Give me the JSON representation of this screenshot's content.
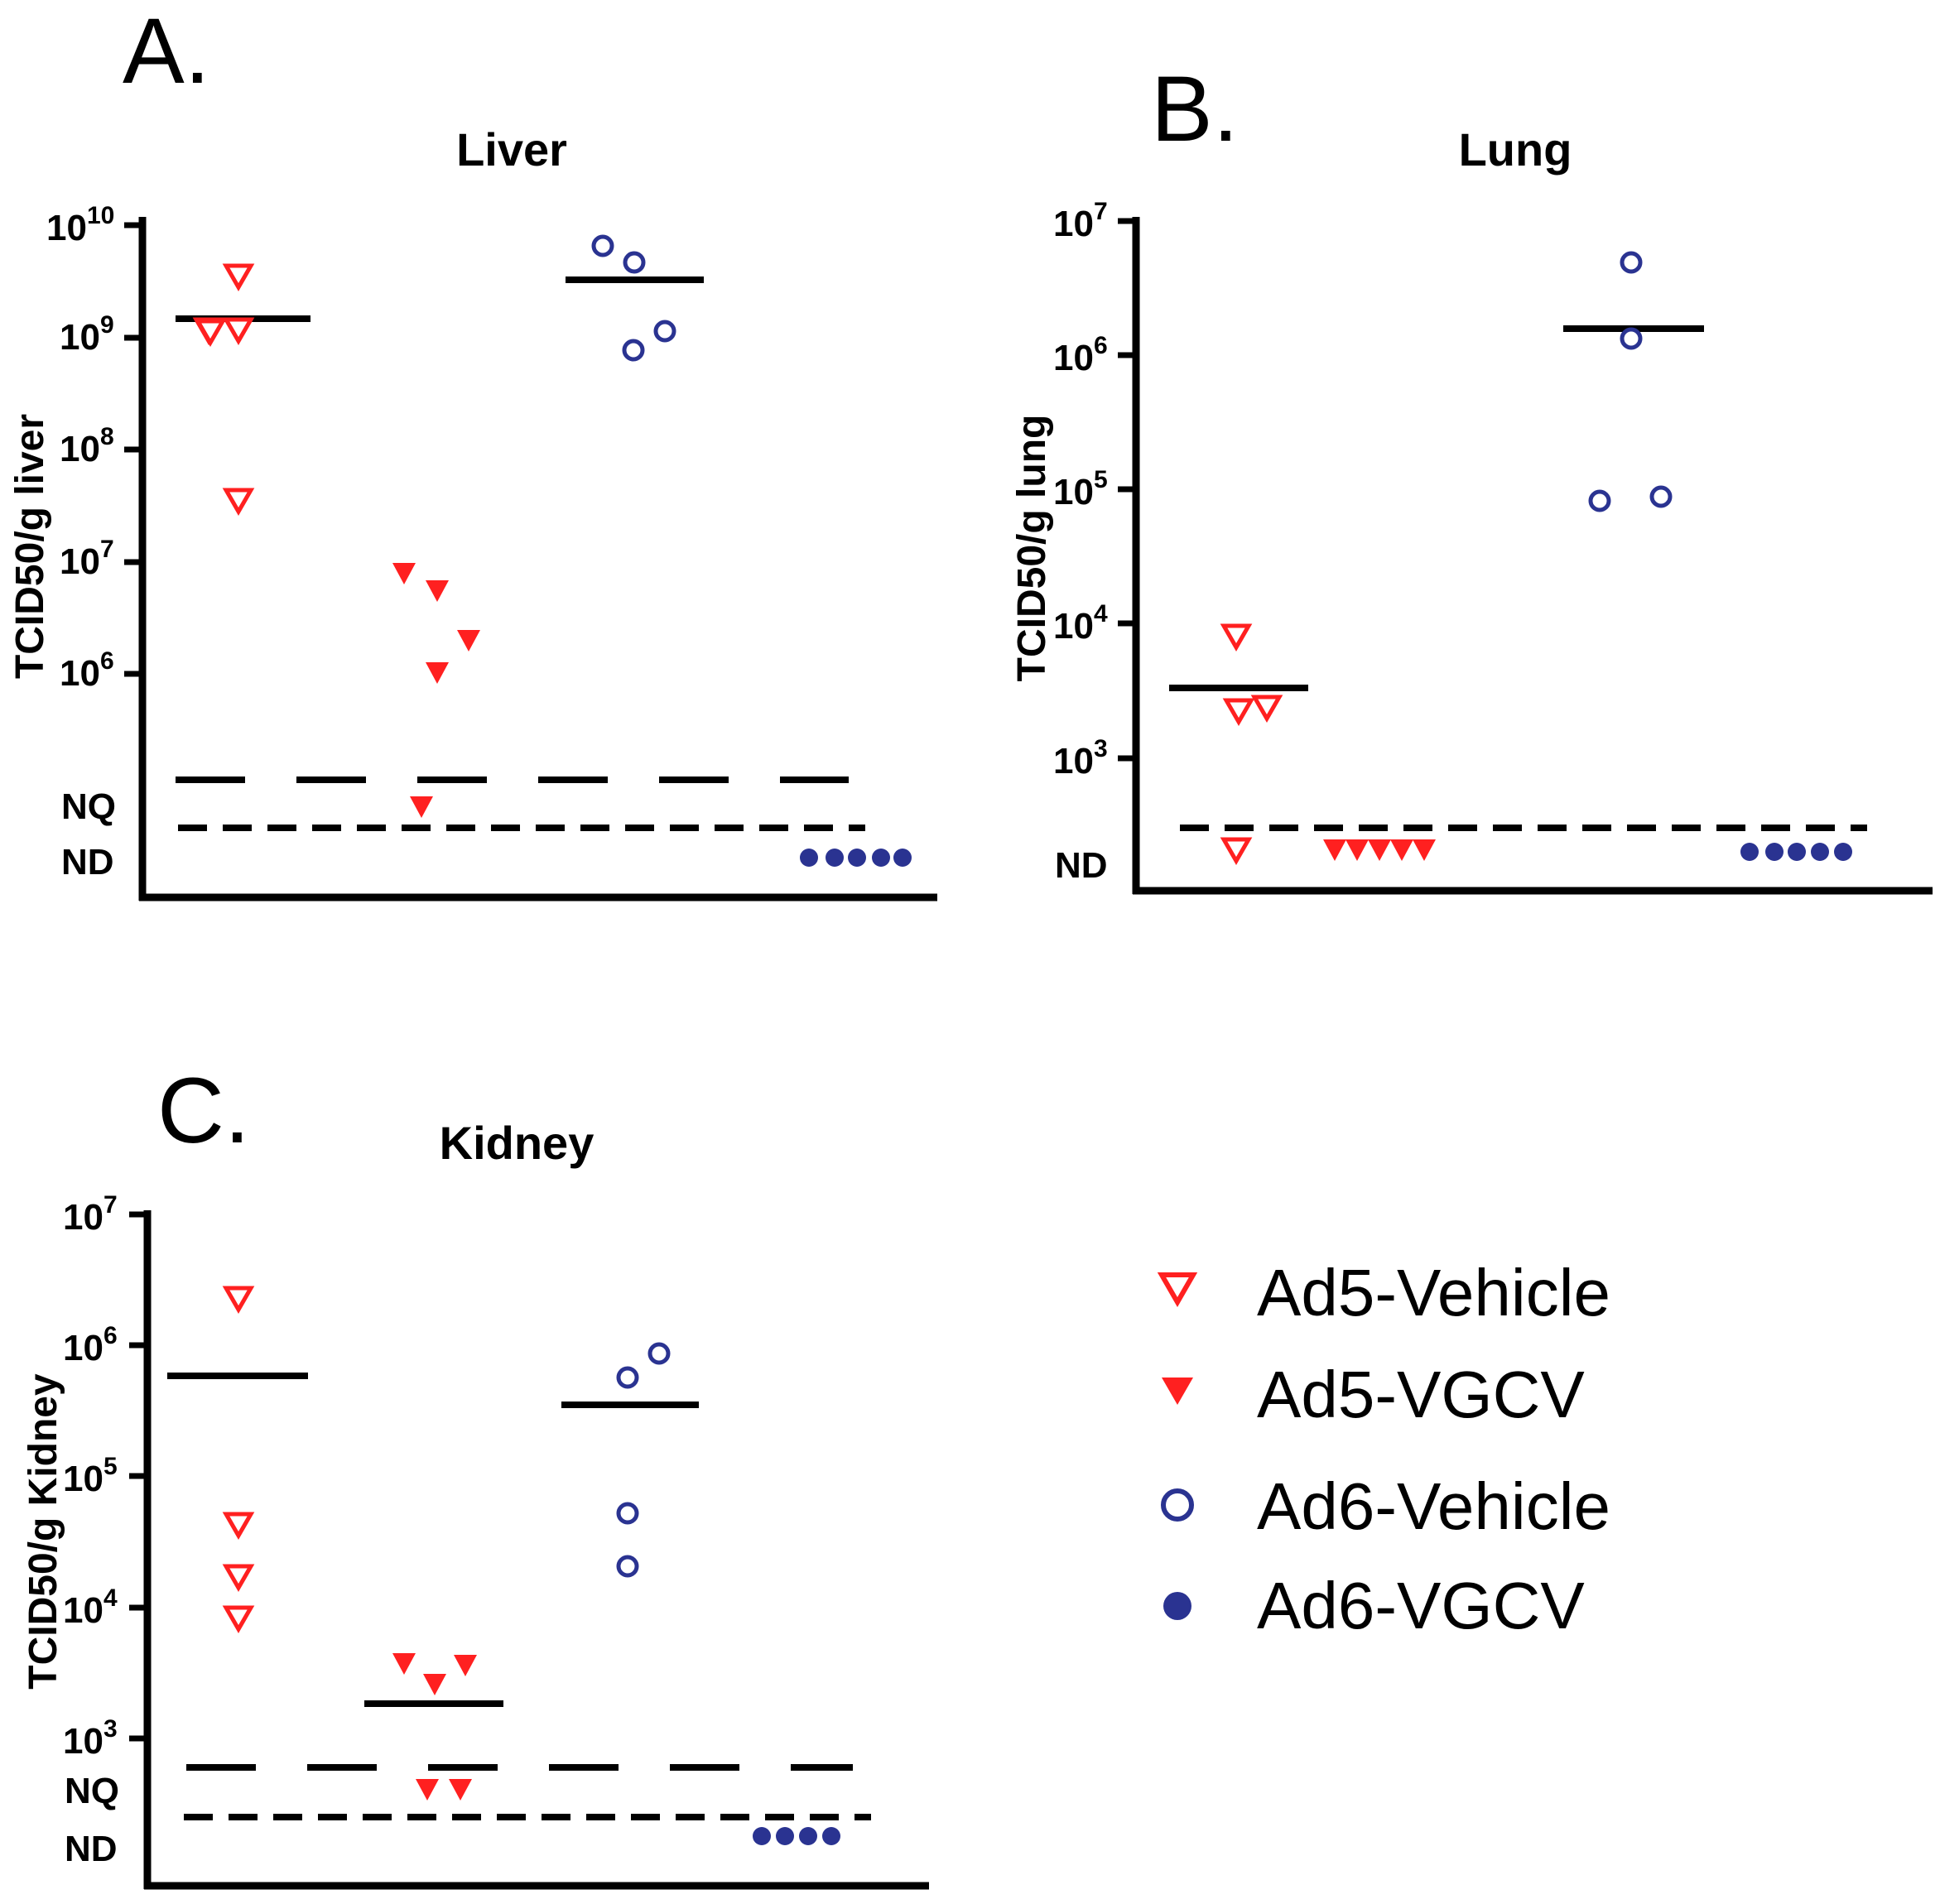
{
  "colors": {
    "ad5": "#ff2020",
    "ad6": "#2a3391",
    "line": "#000000"
  },
  "legend": {
    "items": [
      {
        "label": "Ad5-Vehicle",
        "marker": "triangle-open",
        "group": "ad5"
      },
      {
        "label": "Ad5-VGCV",
        "marker": "triangle-filled",
        "group": "ad5"
      },
      {
        "label": "Ad6-Vehicle",
        "marker": "circle-open",
        "group": "ad6"
      },
      {
        "label": "Ad6-VGCV",
        "marker": "circle-filled",
        "group": "ad6"
      }
    ]
  },
  "chart_data": [
    {
      "panel": "A.",
      "title": "Liver",
      "type": "scatter",
      "ylabel": "TCID50/g liver",
      "yscale": "log",
      "ylim_exp": [
        6,
        10
      ],
      "yticks": [
        {
          "base": "10",
          "exp": "10"
        },
        {
          "base": "10",
          "exp": "9"
        },
        {
          "base": "10",
          "exp": "8"
        },
        {
          "base": "10",
          "exp": "7"
        },
        {
          "base": "10",
          "exp": "6"
        }
      ],
      "nq_label": "NQ",
      "nd_label": "ND",
      "series": [
        {
          "name": "Ad5-Vehicle",
          "values": [
            3500000000.0,
            1100000000.0,
            1100000000.0,
            1100000000.0,
            35000000.0
          ],
          "median": 1450000000.0
        },
        {
          "name": "Ad5-VGCV",
          "values": [
            8000000.0,
            5500000.0,
            2000000.0,
            1100000.0,
            "NQ"
          ]
        },
        {
          "name": "Ad6-Vehicle",
          "values": [
            6500000000.0,
            4500000000.0,
            1100000000.0,
            800000000.0
          ],
          "median": 3200000000.0
        },
        {
          "name": "Ad6-VGCV",
          "values": [
            "ND",
            "ND",
            "ND",
            "ND",
            "ND"
          ]
        }
      ]
    },
    {
      "panel": "B.",
      "title": "Lung",
      "type": "scatter",
      "ylabel": "TCID50/g lung",
      "yscale": "log",
      "ylim_exp": [
        3,
        7
      ],
      "yticks": [
        {
          "base": "10",
          "exp": "7"
        },
        {
          "base": "10",
          "exp": "6"
        },
        {
          "base": "10",
          "exp": "5"
        },
        {
          "base": "10",
          "exp": "4"
        },
        {
          "base": "10",
          "exp": "3"
        }
      ],
      "nq_label": "",
      "nd_label": "ND",
      "series": [
        {
          "name": "Ad5-Vehicle",
          "values": [
            9000.0,
            2500.0,
            2500.0,
            "ND"
          ],
          "median": 3300.0
        },
        {
          "name": "Ad5-VGCV",
          "values": [
            "ND",
            "ND",
            "ND",
            "ND",
            "ND"
          ]
        },
        {
          "name": "Ad6-Vehicle",
          "values": [
            5000000.0,
            1300000.0,
            85000.0,
            85000.0
          ],
          "median": 1600000.0
        },
        {
          "name": "Ad6-VGCV",
          "values": [
            "ND",
            "ND",
            "ND",
            "ND",
            "ND"
          ]
        }
      ]
    },
    {
      "panel": "C.",
      "title": "Kidney",
      "type": "scatter",
      "ylabel": "TCID50/g Kidney",
      "yscale": "log",
      "ylim_exp": [
        3,
        7
      ],
      "yticks": [
        {
          "base": "10",
          "exp": "7"
        },
        {
          "base": "10",
          "exp": "6"
        },
        {
          "base": "10",
          "exp": "5"
        },
        {
          "base": "10",
          "exp": "4"
        },
        {
          "base": "10",
          "exp": "3"
        }
      ],
      "nq_label": "NQ",
      "nd_label": "ND",
      "series": [
        {
          "name": "Ad5-Vehicle",
          "values": [
            2500000.0,
            45000.0,
            18000.0,
            9000.0
          ],
          "median": 600000.0
        },
        {
          "name": "Ad5-VGCV",
          "values": [
            3600.0,
            2800.0,
            3500.0,
            "NQ",
            "NQ"
          ],
          "median": 2000.0
        },
        {
          "name": "Ad6-Vehicle",
          "values": [
            850000.0,
            550000.0,
            50000.0,
            20000.0
          ],
          "median": 350000.0
        },
        {
          "name": "Ad6-VGCV",
          "values": [
            "ND",
            "ND",
            "ND",
            "ND"
          ]
        }
      ]
    }
  ]
}
